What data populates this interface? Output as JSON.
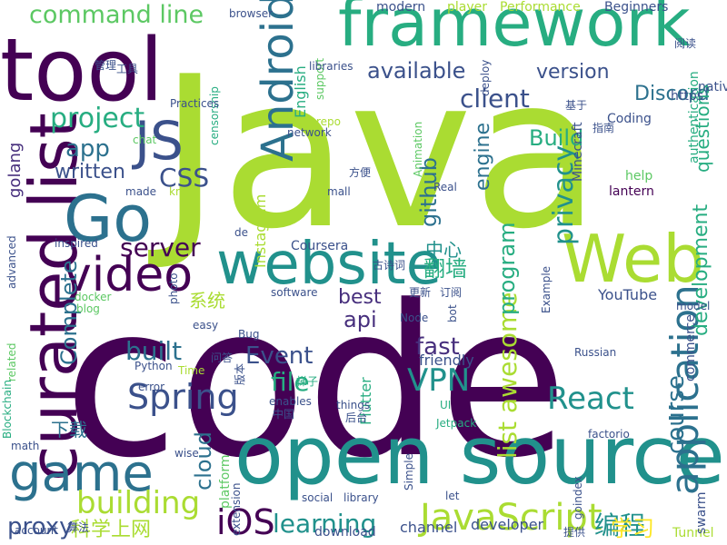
{
  "palette": {
    "dark_purple": "#440154",
    "indigo": "#472f7d",
    "slate_blue": "#3b518b",
    "steel_blue": "#2c718e",
    "teal": "#21918c",
    "green_teal": "#27ad81",
    "green": "#5cc863",
    "lime": "#aadc32",
    "yellow": "#fde725"
  },
  "words": [
    {
      "text": "Java",
      "color": "#aadc32"
    },
    {
      "text": "code",
      "color": "#440154"
    },
    {
      "text": "open source",
      "color": "#21918c"
    },
    {
      "text": "framework",
      "color": "#27ad81"
    },
    {
      "text": "tool",
      "color": "#440154"
    },
    {
      "text": "curated list",
      "color": "#440154"
    },
    {
      "text": "website",
      "color": "#21918c"
    },
    {
      "text": "Go",
      "color": "#2c718e"
    },
    {
      "text": "Web",
      "color": "#aadc32"
    },
    {
      "text": "game",
      "color": "#2c718e"
    },
    {
      "text": "JS",
      "color": "#3b518b"
    },
    {
      "text": "Android",
      "color": "#2c718e"
    },
    {
      "text": "video",
      "color": "#440154"
    },
    {
      "text": "application",
      "color": "#2c718e"
    },
    {
      "text": "building",
      "color": "#aadc32"
    },
    {
      "text": "JavaScript",
      "color": "#aadc32"
    },
    {
      "text": "iOS",
      "color": "#440154"
    },
    {
      "text": "Spring",
      "color": "#3b518b"
    },
    {
      "text": "React",
      "color": "#21918c"
    },
    {
      "text": "VPN",
      "color": "#21918c"
    },
    {
      "text": "server",
      "color": "#440154"
    },
    {
      "text": "learning",
      "color": "#21918c"
    },
    {
      "text": "command line",
      "color": "#5cc863"
    },
    {
      "text": "project",
      "color": "#27ad81"
    },
    {
      "text": "app",
      "color": "#2c718e"
    },
    {
      "text": "written",
      "color": "#3b518b"
    },
    {
      "text": "CSS",
      "color": "#3b518b"
    },
    {
      "text": "golang",
      "color": "#472f7d"
    },
    {
      "text": "client",
      "color": "#3b518b"
    },
    {
      "text": "available",
      "color": "#3b518b"
    },
    {
      "text": "version",
      "color": "#3b518b"
    },
    {
      "text": "Discord",
      "color": "#2c718e"
    },
    {
      "text": "privacy",
      "color": "#21918c"
    },
    {
      "text": "github",
      "color": "#2c718e"
    },
    {
      "text": "engine",
      "color": "#2c718e"
    },
    {
      "text": "questions",
      "color": "#27ad81"
    },
    {
      "text": "development",
      "color": "#27ad81"
    },
    {
      "text": "course",
      "color": "#2c718e"
    },
    {
      "text": "fast",
      "color": "#472f7d"
    },
    {
      "text": "api",
      "color": "#472f7d"
    },
    {
      "text": "best",
      "color": "#472f7d"
    },
    {
      "text": "built",
      "color": "#2c718e"
    },
    {
      "text": "Event",
      "color": "#3b518b"
    },
    {
      "text": "file",
      "color": "#27ad81"
    },
    {
      "text": "cloud",
      "color": "#2c718e"
    },
    {
      "text": "proxy",
      "color": "#3b518b"
    },
    {
      "text": "Build",
      "color": "#27ad81"
    },
    {
      "text": "list awesome",
      "color": "#aadc32"
    },
    {
      "text": "program",
      "color": "#27ad81"
    },
    {
      "text": "翻墙",
      "color": "#27ad81"
    },
    {
      "text": "中心",
      "color": "#21918c"
    },
    {
      "text": "编程",
      "color": "#21918c"
    },
    {
      "text": "学习",
      "color": "#fde725"
    },
    {
      "text": "科学上网",
      "color": "#aadc32"
    },
    {
      "text": "下载",
      "color": "#2c718e"
    },
    {
      "text": "系统",
      "color": "#aadc32"
    },
    {
      "text": "English",
      "color": "#27ad81"
    },
    {
      "text": "Complete",
      "color": "#2c718e"
    },
    {
      "text": "platform",
      "color": "#5cc863"
    },
    {
      "text": "Instagram",
      "color": "#aadc32"
    },
    {
      "text": "YouTube",
      "color": "#3b518b"
    },
    {
      "text": "Coursera",
      "color": "#3b518b"
    },
    {
      "text": "Flutter",
      "color": "#27ad81"
    },
    {
      "text": "friendly",
      "color": "#3b518b"
    },
    {
      "text": "channel",
      "color": "#3b518b"
    },
    {
      "text": "developer",
      "color": "#3b518b"
    },
    {
      "text": "download",
      "color": "#3b518b"
    },
    {
      "text": "Tunnel",
      "color": "#aadc32"
    },
    {
      "text": "swarm",
      "color": "#3b518b"
    },
    {
      "text": "commerce",
      "color": "#3b518b"
    },
    {
      "text": "authentication",
      "color": "#27ad81"
    },
    {
      "text": "native",
      "color": "#3b518b"
    },
    {
      "text": "Minecraft",
      "color": "#3b518b"
    },
    {
      "text": "lantern",
      "color": "#440154"
    },
    {
      "text": "help",
      "color": "#5cc863"
    },
    {
      "text": "Coding",
      "color": "#3b518b"
    },
    {
      "text": "Performance",
      "color": "#aadc32"
    },
    {
      "text": "Beginners",
      "color": "#3b518b"
    },
    {
      "text": "https",
      "color": "#3b518b"
    },
    {
      "text": "player",
      "color": "#aadc32"
    },
    {
      "text": "modern",
      "color": "#3b518b"
    },
    {
      "text": "browser",
      "color": "#3b518b"
    },
    {
      "text": "support",
      "color": "#5cc863"
    },
    {
      "text": "deploy",
      "color": "#3b518b"
    },
    {
      "text": "Animation",
      "color": "#5cc863"
    },
    {
      "text": "libraries",
      "color": "#3b518b"
    },
    {
      "text": "network",
      "color": "#3b518b"
    },
    {
      "text": "repo",
      "color": "#aadc32"
    },
    {
      "text": "censorship",
      "color": "#27ad81"
    },
    {
      "text": "chat",
      "color": "#5cc863"
    },
    {
      "text": "Practices",
      "color": "#3b518b"
    },
    {
      "text": "made",
      "color": "#3b518b"
    },
    {
      "text": "know",
      "color": "#aadc32"
    },
    {
      "text": "inspired",
      "color": "#3b518b"
    },
    {
      "text": "docker",
      "color": "#5cc863"
    },
    {
      "text": "blog",
      "color": "#5cc863"
    },
    {
      "text": "advanced",
      "color": "#3b518b"
    },
    {
      "text": "related",
      "color": "#5cc863"
    },
    {
      "text": "photo",
      "color": "#3b518b"
    },
    {
      "text": "software",
      "color": "#3b518b"
    },
    {
      "text": "easy",
      "color": "#3b518b"
    },
    {
      "text": "Bug",
      "color": "#3b518b"
    },
    {
      "text": "Python",
      "color": "#3b518b"
    },
    {
      "text": "Time",
      "color": "#aadc32"
    },
    {
      "text": "error",
      "color": "#3b518b"
    },
    {
      "text": "wise",
      "color": "#3b518b"
    },
    {
      "text": "enables",
      "color": "#3b518b"
    },
    {
      "text": "things",
      "color": "#3b518b"
    },
    {
      "text": "Jetpack",
      "color": "#27ad81"
    },
    {
      "text": "UI",
      "color": "#27ad81"
    },
    {
      "text": "Node",
      "color": "#3b518b"
    },
    {
      "text": "Simple",
      "color": "#3b518b"
    },
    {
      "text": "library",
      "color": "#3b518b"
    },
    {
      "text": "social",
      "color": "#3b518b"
    },
    {
      "text": "extension",
      "color": "#3b518b"
    },
    {
      "text": "account",
      "color": "#3b518b"
    },
    {
      "text": "math",
      "color": "#3b518b"
    },
    {
      "text": "Blockchain",
      "color": "#27ad81"
    },
    {
      "text": "model",
      "color": "#3b518b"
    },
    {
      "text": "Russian",
      "color": "#3b518b"
    },
    {
      "text": "factorio",
      "color": "#3b518b"
    },
    {
      "text": "goindex",
      "color": "#3b518b"
    },
    {
      "text": "mall",
      "color": "#3b518b"
    },
    {
      "text": "Real",
      "color": "#3b518b"
    },
    {
      "text": "de",
      "color": "#3b518b"
    },
    {
      "text": "let",
      "color": "#3b518b"
    },
    {
      "text": "bot",
      "color": "#3b518b"
    },
    {
      "text": "Example",
      "color": "#3b518b"
    },
    {
      "text": "中国",
      "color": "#3b518b"
    },
    {
      "text": "版本",
      "color": "#3b518b"
    },
    {
      "text": "后台",
      "color": "#3b518b"
    },
    {
      "text": "梯子",
      "color": "#27ad81"
    },
    {
      "text": "问答",
      "color": "#3b518b"
    },
    {
      "text": "古诗词",
      "color": "#3b518b"
    },
    {
      "text": "更新",
      "color": "#3b518b"
    },
    {
      "text": "订阅",
      "color": "#3b518b"
    },
    {
      "text": "方便",
      "color": "#3b518b"
    },
    {
      "text": "基于",
      "color": "#3b518b"
    },
    {
      "text": "指南",
      "color": "#3b518b"
    },
    {
      "text": "阅读",
      "color": "#3b518b"
    },
    {
      "text": "工具",
      "color": "#3b518b"
    },
    {
      "text": "管理",
      "color": "#3b518b"
    },
    {
      "text": "算法",
      "color": "#3b518b"
    },
    {
      "text": "提供",
      "color": "#3b518b"
    }
  ]
}
